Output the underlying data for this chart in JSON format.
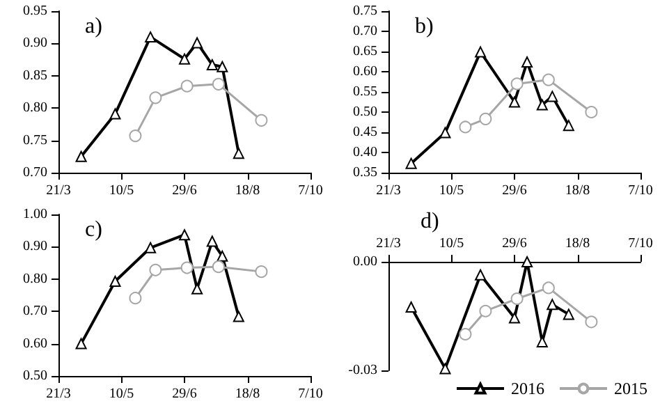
{
  "chart_data": [
    {
      "type": "line",
      "title": "a)",
      "xlim": [
        "--03-21",
        "--10-07"
      ],
      "xticks": [
        {
          "value": "--03-21",
          "label": "21/3"
        },
        {
          "value": "--05-10",
          "label": "10/5"
        },
        {
          "value": "--06-29",
          "label": "29/6"
        },
        {
          "value": "--08-18",
          "label": "18/8"
        },
        {
          "value": "--10-07",
          "label": "7/10"
        }
      ],
      "ylim": [
        0.7,
        0.95
      ],
      "yticks": [
        {
          "value": 0.7,
          "label": "0.70"
        },
        {
          "value": 0.75,
          "label": "0.75"
        },
        {
          "value": 0.8,
          "label": "0.80"
        },
        {
          "value": 0.85,
          "label": "0.85"
        },
        {
          "value": 0.9,
          "label": "0.90"
        },
        {
          "value": 0.95,
          "label": "0.95"
        }
      ],
      "grid": false,
      "legend": false,
      "series": [
        {
          "color": "#000000",
          "marker": "triangle",
          "x": [
            "--04-08",
            "--05-05",
            "--06-02",
            "--06-29",
            "--07-09",
            "--07-21",
            "--07-29",
            "--08-11"
          ],
          "values": [
            0.725,
            0.791,
            0.91,
            0.876,
            0.901,
            0.867,
            0.864,
            0.73
          ]
        },
        {
          "color": "#a6a6a6",
          "marker": "circle",
          "x": [
            "--05-21",
            "--06-06",
            "--07-01",
            "--07-26",
            "--08-29"
          ],
          "values": [
            0.757,
            0.816,
            0.834,
            0.837,
            0.781
          ]
        }
      ]
    },
    {
      "type": "line",
      "title": "b)",
      "xlim": [
        "--03-21",
        "--10-07"
      ],
      "xticks": [
        {
          "value": "--03-21",
          "label": "21/3"
        },
        {
          "value": "--05-10",
          "label": "10/5"
        },
        {
          "value": "--06-29",
          "label": "29/6"
        },
        {
          "value": "--08-18",
          "label": "18/8"
        },
        {
          "value": "--10-07",
          "label": "7/10"
        }
      ],
      "ylim": [
        0.35,
        0.75
      ],
      "yticks": [
        {
          "value": 0.35,
          "label": "0.35"
        },
        {
          "value": 0.4,
          "label": "0.40"
        },
        {
          "value": 0.45,
          "label": "0.45"
        },
        {
          "value": 0.5,
          "label": "0.50"
        },
        {
          "value": 0.55,
          "label": "0.55"
        },
        {
          "value": 0.6,
          "label": "0.60"
        },
        {
          "value": 0.65,
          "label": "0.65"
        },
        {
          "value": 0.7,
          "label": "0.70"
        },
        {
          "value": 0.75,
          "label": "0.75"
        }
      ],
      "grid": false,
      "legend": false,
      "series": [
        {
          "color": "#000000",
          "marker": "triangle",
          "x": [
            "--04-08",
            "--05-05",
            "--06-02",
            "--06-29",
            "--07-09",
            "--07-21",
            "--07-29",
            "--08-11"
          ],
          "values": [
            0.373,
            0.449,
            0.649,
            0.525,
            0.624,
            0.518,
            0.539,
            0.467
          ]
        },
        {
          "color": "#a6a6a6",
          "marker": "circle",
          "x": [
            "--05-21",
            "--06-06",
            "--07-01",
            "--07-26",
            "--08-29"
          ],
          "values": [
            0.463,
            0.483,
            0.57,
            0.58,
            0.5
          ]
        }
      ]
    },
    {
      "type": "line",
      "title": "c)",
      "xlim": [
        "--03-21",
        "--10-07"
      ],
      "xticks": [
        {
          "value": "--03-21",
          "label": "21/3"
        },
        {
          "value": "--05-10",
          "label": "10/5"
        },
        {
          "value": "--06-29",
          "label": "29/6"
        },
        {
          "value": "--08-18",
          "label": "18/8"
        },
        {
          "value": "--10-07",
          "label": "7/10"
        }
      ],
      "ylim": [
        0.5,
        1.0
      ],
      "yticks": [
        {
          "value": 0.5,
          "label": "0.50"
        },
        {
          "value": 0.6,
          "label": "0.60"
        },
        {
          "value": 0.7,
          "label": "0.70"
        },
        {
          "value": 0.8,
          "label": "0.80"
        },
        {
          "value": 0.9,
          "label": "0.90"
        },
        {
          "value": 1.0,
          "label": "1.00"
        }
      ],
      "grid": false,
      "legend": false,
      "series": [
        {
          "color": "#000000",
          "marker": "triangle",
          "x": [
            "--04-08",
            "--05-05",
            "--06-02",
            "--06-29",
            "--07-09",
            "--07-21",
            "--07-29",
            "--08-11"
          ],
          "values": [
            0.6,
            0.793,
            0.897,
            0.937,
            0.77,
            0.917,
            0.871,
            0.684
          ]
        },
        {
          "color": "#a6a6a6",
          "marker": "circle",
          "x": [
            "--05-21",
            "--06-06",
            "--07-01",
            "--07-26",
            "--08-29"
          ],
          "values": [
            0.741,
            0.828,
            0.835,
            0.838,
            0.823
          ]
        }
      ]
    },
    {
      "type": "line",
      "title": "d)",
      "xlim": [
        "--03-21",
        "--10-07"
      ],
      "xticks": [
        {
          "value": "--03-21",
          "label": "21/3"
        },
        {
          "value": "--05-10",
          "label": "10/5"
        },
        {
          "value": "--06-29",
          "label": "29/6"
        },
        {
          "value": "--08-18",
          "label": "18/8"
        },
        {
          "value": "--10-07",
          "label": "7/10"
        }
      ],
      "ylim": [
        -0.03,
        0
      ],
      "yticks": [
        {
          "value": -0.03,
          "label": "-0.03"
        },
        {
          "value": 0,
          "label": "0.00"
        }
      ],
      "grid": false,
      "legend": "bottom right",
      "series": [
        {
          "name": "2016",
          "color": "#000000",
          "marker": "triangle",
          "x": [
            "--04-08",
            "--05-05",
            "--06-02",
            "--06-29",
            "--07-09",
            "--07-21",
            "--07-29",
            "--08-11"
          ],
          "values": [
            -0.0125,
            -0.0295,
            -0.0036,
            -0.0155,
            0.0,
            -0.0221,
            -0.0118,
            -0.0145
          ]
        },
        {
          "name": "2015",
          "color": "#a6a6a6",
          "marker": "circle",
          "x": [
            "--05-21",
            "--06-06",
            "--07-01",
            "--07-26",
            "--08-29"
          ],
          "values": [
            -0.02,
            -0.0136,
            -0.0102,
            -0.0072,
            -0.0166
          ]
        }
      ]
    }
  ]
}
